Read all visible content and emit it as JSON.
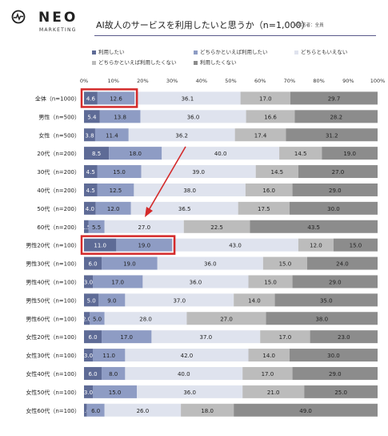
{
  "header": {
    "brand": "NEO",
    "brand_sub": "MARKETING",
    "title": "AI故人のサービスを利用したいと思うか（n=1,000）",
    "note": "※回答者：全員"
  },
  "colors": {
    "s1": "#5e6b96",
    "s2": "#8e9cc4",
    "s3": "#dfe3ee",
    "s4": "#bcbcbc",
    "s5": "#8c8c8c",
    "highlight": "#d42a2a"
  },
  "chart_data": {
    "type": "bar",
    "orientation": "horizontal",
    "stacked": true,
    "xlim": [
      0,
      100
    ],
    "x_ticks": [
      "0%",
      "10%",
      "20%",
      "30%",
      "40%",
      "50%",
      "60%",
      "70%",
      "80%",
      "90%",
      "100%"
    ],
    "legend": [
      "利用したい",
      "どちらかといえば利用したい",
      "どちらともいえない",
      "どちらかといえば利用したくない",
      "利用したくない"
    ],
    "categories": [
      "全体（n=1000）",
      "男性（n=500）",
      "女性（n=500）",
      "20代（n=200）",
      "30代（n=200）",
      "40代（n=200）",
      "50代（n=200）",
      "60代（n=200）",
      "男性20代（n=100）",
      "男性30代（n=100）",
      "男性40代（n=100）",
      "男性50代（n=100）",
      "男性60代（n=100）",
      "女性20代（n=100）",
      "女性30代（n=100）",
      "女性40代（n=100）",
      "女性50代（n=100）",
      "女性60代（n=100）"
    ],
    "series": [
      {
        "name": "利用したい",
        "values": [
          4.6,
          5.4,
          3.8,
          8.5,
          4.5,
          4.5,
          4.0,
          1.5,
          11.0,
          6.0,
          3.0,
          5.0,
          2.0,
          6.0,
          3.0,
          6.0,
          3.0,
          1.0
        ]
      },
      {
        "name": "どちらかといえば利用したい",
        "values": [
          12.6,
          13.8,
          11.4,
          18.0,
          15.0,
          12.5,
          12.0,
          5.5,
          19.0,
          19.0,
          17.0,
          9.0,
          5.0,
          17.0,
          11.0,
          8.0,
          15.0,
          6.0
        ]
      },
      {
        "name": "どちらともいえない",
        "values": [
          36.1,
          36.0,
          36.2,
          40.0,
          39.0,
          38.0,
          36.5,
          27.0,
          43.0,
          36.0,
          36.0,
          37.0,
          28.0,
          37.0,
          42.0,
          40.0,
          36.0,
          26.0
        ]
      },
      {
        "name": "どちらかといえば利用したくない",
        "values": [
          17.0,
          16.6,
          17.4,
          14.5,
          14.5,
          16.0,
          17.5,
          22.5,
          12.0,
          15.0,
          15.0,
          14.0,
          27.0,
          17.0,
          14.0,
          17.0,
          21.0,
          18.0
        ]
      },
      {
        "name": "利用したくない",
        "values": [
          29.7,
          28.2,
          31.2,
          19.0,
          27.0,
          29.0,
          30.0,
          43.5,
          15.0,
          24.0,
          29.0,
          35.0,
          38.0,
          23.0,
          30.0,
          29.0,
          25.0,
          49.0
        ]
      }
    ],
    "highlighted_rows": [
      0,
      8
    ]
  }
}
